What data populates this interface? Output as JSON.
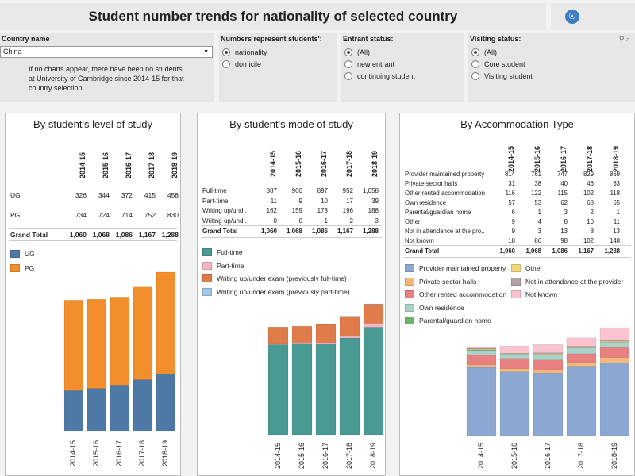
{
  "header": {
    "title": "Student number trends for nationality of selected country"
  },
  "filters": {
    "country": {
      "label": "Country name",
      "value": "China"
    },
    "note": "If no charts appear, there have been no students at University of Cambridge since 2014-15 for that country selection.",
    "represent": {
      "label": "Numbers represent students':",
      "options": [
        "nationality",
        "domicile"
      ],
      "selected": 0
    },
    "entrant": {
      "label": "Entrant status:",
      "options": [
        "(All)",
        "new entrant",
        "continuing student"
      ],
      "selected": 0
    },
    "visiting": {
      "label": "Visiting status:",
      "options": [
        "(All)",
        "Core student",
        "Visiting student"
      ],
      "selected": 0
    }
  },
  "chart_data": [
    {
      "type": "bar",
      "title": "By student's level of study",
      "categories": [
        "2014-15",
        "2015-16",
        "2016-17",
        "2017-18",
        "2018-19"
      ],
      "series": [
        {
          "name": "UG",
          "values": [
            326,
            344,
            372,
            415,
            458
          ],
          "color": "#4e79a7"
        },
        {
          "name": "PG",
          "values": [
            734,
            724,
            714,
            752,
            830
          ],
          "color": "#f28e2b"
        }
      ],
      "total_label": "Grand Total",
      "totals": [
        "1,060",
        "1,068",
        "1,086",
        "1,167",
        "1,288"
      ]
    },
    {
      "type": "bar",
      "title": "By student's mode of study",
      "categories": [
        "2014-15",
        "2015-16",
        "2016-17",
        "2017-18",
        "2018-19"
      ],
      "series": [
        {
          "name": "Full-time",
          "table_name": "Full-time",
          "values": [
            887,
            900,
            897,
            952,
            1058
          ],
          "display": [
            "887",
            "900",
            "897",
            "952",
            "1,058"
          ],
          "color": "#4a9a94"
        },
        {
          "name": "Part-time",
          "table_name": "Part-time",
          "values": [
            11,
            9,
            10,
            17,
            39
          ],
          "color": "#f4b6c2"
        },
        {
          "name": "Writing up/under exam (previously full-time)",
          "table_name": "Writing up/und..",
          "values": [
            162,
            159,
            178,
            196,
            188
          ],
          "color": "#e07b4a"
        },
        {
          "name": "Writing up/under exam (previously part-time)",
          "table_name": "Writing up/und..",
          "values": [
            0,
            0,
            1,
            2,
            3
          ],
          "color": "#9fc8e6"
        }
      ],
      "total_label": "Grand Total",
      "totals": [
        "1,060",
        "1,068",
        "1,086",
        "1,167",
        "1,288"
      ]
    },
    {
      "type": "bar",
      "title": "By Accommodation Type",
      "categories": [
        "2014-15",
        "2015-16",
        "2016-17",
        "2017-18",
        "2018-19"
      ],
      "series": [
        {
          "name": "Provider maintained property",
          "table_name": "Provider maintained property",
          "values": [
            814,
            761,
            747,
            829,
            869
          ],
          "color": "#8aa8d2"
        },
        {
          "name": "Private-sector halls",
          "table_name": "Private-sector halls",
          "values": [
            31,
            38,
            40,
            46,
            63
          ],
          "color": "#f5b87a"
        },
        {
          "name": "Other rented accommodation",
          "table_name": "Other rented accommodation",
          "values": [
            116,
            122,
            115,
            102,
            118
          ],
          "color": "#e88080"
        },
        {
          "name": "Own residence",
          "table_name": "Own residence",
          "values": [
            57,
            53,
            62,
            68,
            65
          ],
          "color": "#a9d2c9"
        },
        {
          "name": "Parental/guardian home",
          "table_name": "Parental/guardian home",
          "values": [
            6,
            1,
            3,
            2,
            1
          ],
          "color": "#6fb36a"
        },
        {
          "name": "Other",
          "table_name": "Other",
          "values": [
            9,
            4,
            8,
            10,
            11
          ],
          "color": "#f1d77a"
        },
        {
          "name": "Not in attendance at the provider",
          "table_name": "Not in attendance at the pro..",
          "values": [
            9,
            3,
            13,
            8,
            13
          ],
          "color": "#b3a1a8"
        },
        {
          "name": "Not known",
          "table_name": "Not known",
          "values": [
            18,
            86,
            98,
            102,
            148
          ],
          "color": "#f9c3cf"
        }
      ],
      "total_label": "Grand Total",
      "totals": [
        "1,060",
        "1,068",
        "1,086",
        "1,167",
        "1,288"
      ]
    }
  ]
}
